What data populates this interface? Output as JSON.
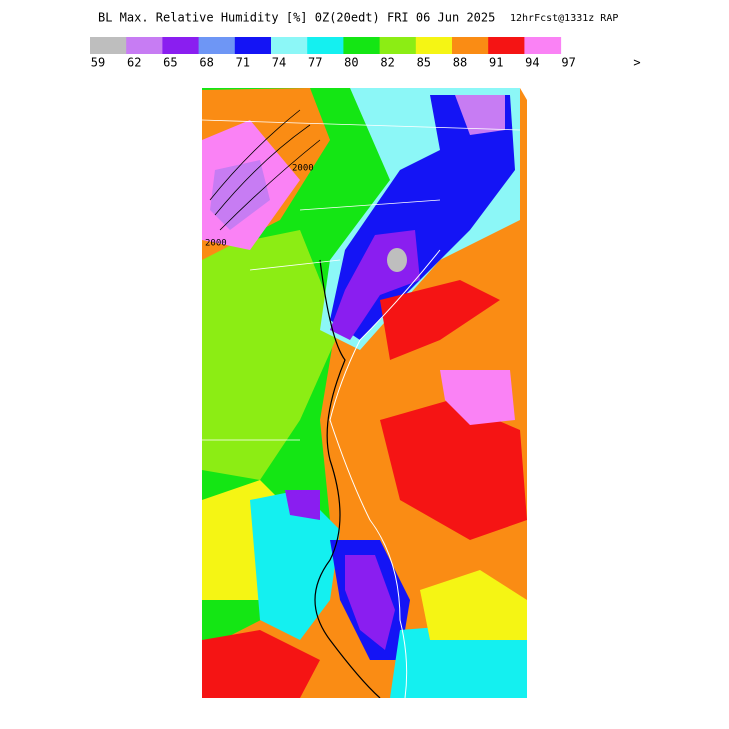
{
  "header": {
    "title": "BL Max. Relative Humidity [%] 0Z(20edt) FRI 06 Jun 2025",
    "subtitle": "12hrFcst@1331z RAP"
  },
  "legend": {
    "colors": [
      "#bebebe",
      "#c77cf3",
      "#8a1ef0",
      "#6e96f5",
      "#1414f5",
      "#8cf7f7",
      "#14f0f0",
      "#14e614",
      "#8ced14",
      "#f5f514",
      "#fa8c14",
      "#f51414",
      "#fa82f5",
      "#ffffff"
    ],
    "labels": [
      "59",
      "62",
      "65",
      "68",
      "71",
      "74",
      "77",
      "80",
      "82",
      "85",
      "88",
      "91",
      "94",
      "97"
    ],
    "overflow": ">"
  },
  "map": {
    "contour_labels": [
      "2000",
      "2000"
    ]
  }
}
